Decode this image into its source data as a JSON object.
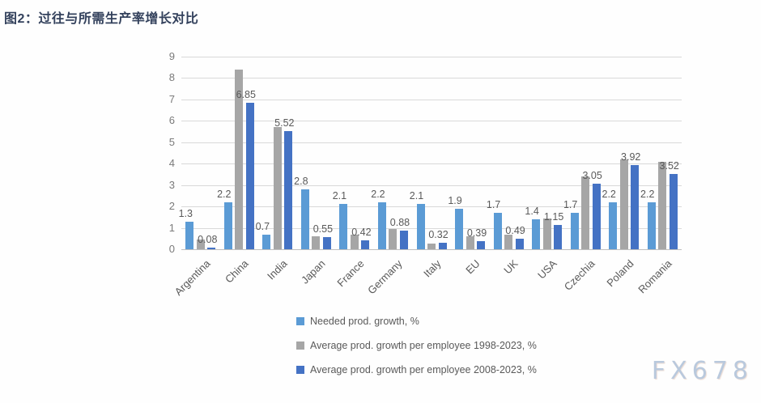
{
  "page_title": "图2：过往与所需生产率增长对比",
  "watermark": "FX678",
  "colors": {
    "title": "#33415c",
    "gridline": "#d9d9d9",
    "axis_line": "#bfbfbf",
    "tick_text": "#7a7a7a",
    "label_text": "#595959"
  },
  "chart_data": {
    "type": "bar",
    "title": "图2：过往与所需生产率增长对比",
    "categories": [
      "Argentina",
      "China",
      "India",
      "Japan",
      "France",
      "Germany",
      "Italy",
      "EU",
      "UK",
      "USA",
      "Czechia",
      "Poland",
      "Romania"
    ],
    "series": [
      {
        "name": "Needed prod. growth, %",
        "color": "#5B9BD5",
        "values": [
          1.3,
          2.2,
          0.7,
          2.8,
          2.1,
          2.2,
          2.1,
          1.9,
          1.7,
          1.4,
          1.7,
          2.2,
          2.2
        ],
        "labels": [
          "1.3",
          "2.2",
          "0.7",
          "2.8",
          "2.1",
          "2.2",
          "2.1",
          "1.9",
          "1.7",
          "1.4",
          "1.7",
          "2.2",
          "2.2"
        ],
        "labels_visible": true
      },
      {
        "name": "Average prod. growth per employee 1998-2023, %",
        "color": "#A6A6A6",
        "values": [
          0.45,
          8.4,
          5.7,
          0.62,
          0.68,
          0.95,
          0.25,
          0.62,
          0.68,
          1.45,
          3.4,
          4.2,
          4.1
        ],
        "labels": [],
        "labels_visible": false
      },
      {
        "name": "Average prod. growth per employee 2008-2023, %",
        "color": "#4472C4",
        "values": [
          0.08,
          6.85,
          5.52,
          0.55,
          0.42,
          0.88,
          0.32,
          0.39,
          0.49,
          1.15,
          3.05,
          3.92,
          3.52
        ],
        "labels": [
          "0.08",
          "6.85",
          "5.52",
          "0.55",
          "0.42",
          "0.88",
          "0.32",
          "0.39",
          "0.49",
          "1.15",
          "3.05",
          "3.92",
          "3.52"
        ],
        "labels_visible": true
      }
    ],
    "ylim": [
      0,
      9
    ],
    "ytick_step": 1,
    "grid": true,
    "legend_position": "bottom-left",
    "xlabel": "",
    "ylabel": ""
  }
}
